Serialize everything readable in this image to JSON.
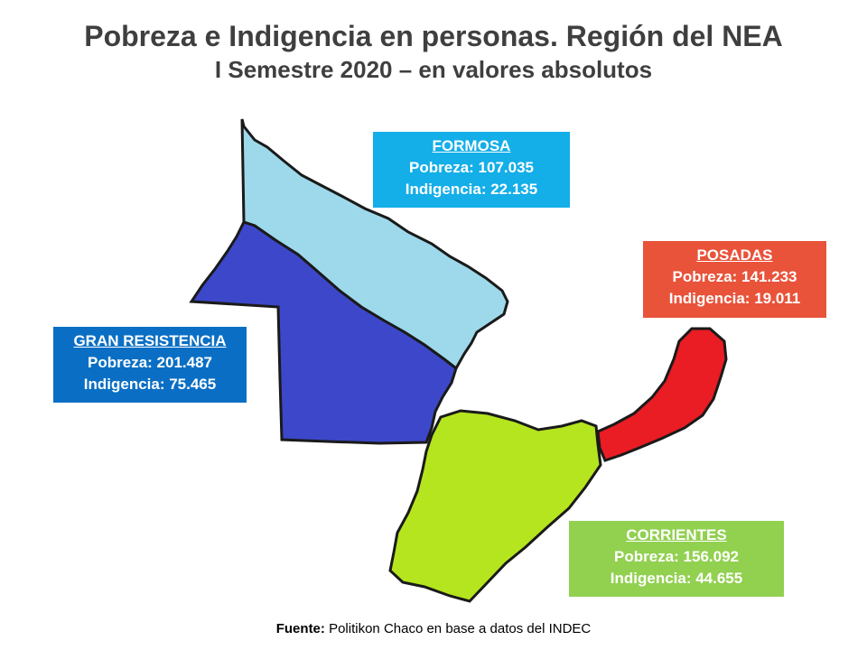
{
  "title": "Pobreza e Indigencia en personas. Región del NEA",
  "subtitle": "I Semestre 2020 – en valores absolutos",
  "regions": [
    {
      "name": "FORMOSA",
      "pobreza": "Pobreza: 107.035",
      "indigencia": "Indigencia: 22.135",
      "box_color": "#14aee8",
      "map_color": "#9dd9ea"
    },
    {
      "name": "POSADAS",
      "pobreza": "Pobreza: 141.233",
      "indigencia": "Indigencia: 19.011",
      "box_color": "#e8533a",
      "map_color": "#ea1c24"
    },
    {
      "name": "GRAN RESISTENCIA",
      "pobreza": "Pobreza: 201.487",
      "indigencia": "Indigencia: 75.465",
      "box_color": "#0a6fc4",
      "map_color": "#3c48c9"
    },
    {
      "name": "CORRIENTES",
      "pobreza": "Pobreza: 156.092",
      "indigencia": "Indigencia: 44.655",
      "box_color": "#92d050",
      "map_color": "#b5e51e"
    }
  ],
  "source": {
    "label": "Fuente:",
    "text": " Politikon Chaco en base a datos del INDEC"
  }
}
